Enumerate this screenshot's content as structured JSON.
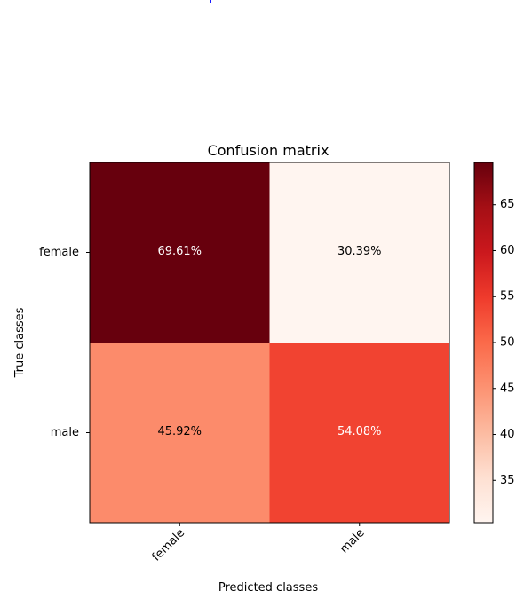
{
  "chart_data": {
    "type": "heatmap",
    "title": "Confusion matrix",
    "xlabel": "Predicted classes",
    "ylabel": "True classes",
    "x_categories": [
      "female",
      "male"
    ],
    "y_categories": [
      "female",
      "male"
    ],
    "values": [
      [
        69.61,
        30.39
      ],
      [
        45.92,
        54.08
      ]
    ],
    "cell_labels": [
      [
        "69.61%",
        "30.39%"
      ],
      [
        "45.92%",
        "54.08%"
      ]
    ],
    "colormap": "Reds",
    "colorbar": {
      "range": [
        30.39,
        69.61
      ],
      "ticks": [
        35,
        40,
        45,
        50,
        55,
        60,
        65
      ],
      "tick_labels": [
        "35",
        "40",
        "45",
        "50",
        "55",
        "60",
        "65"
      ]
    }
  }
}
